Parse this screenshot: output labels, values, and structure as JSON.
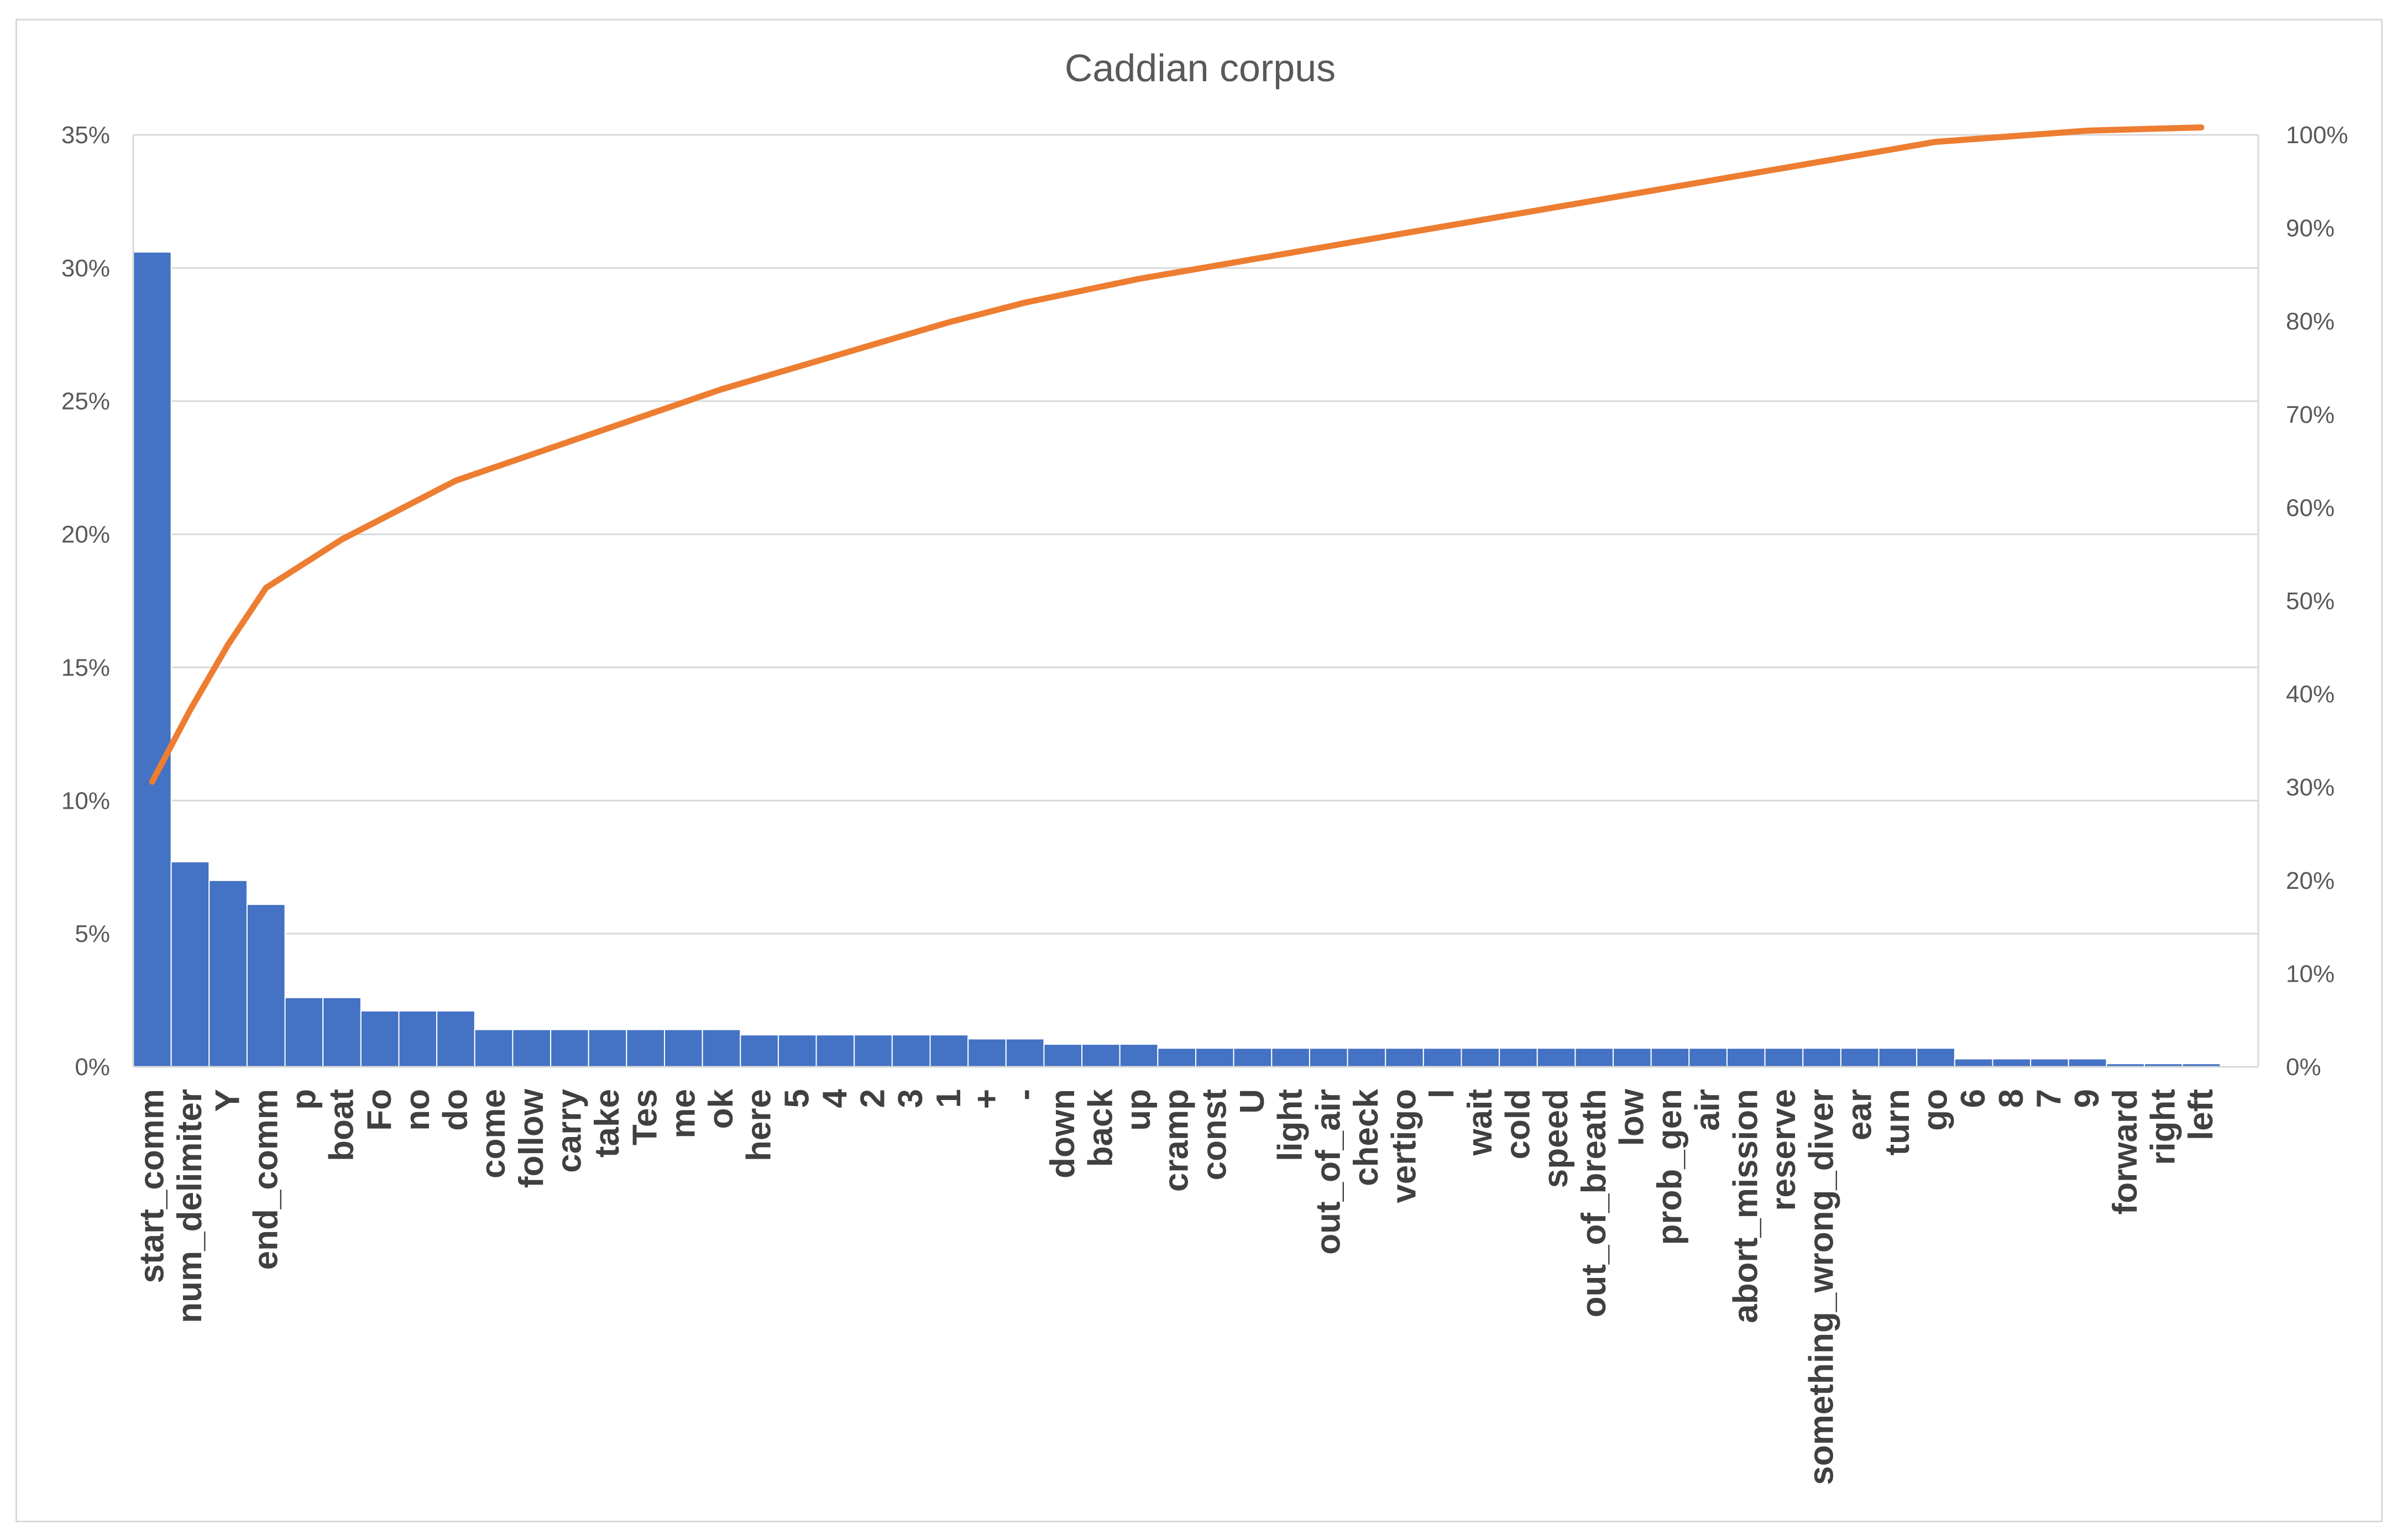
{
  "chart_data": {
    "type": "bar",
    "title": "Caddian corpus",
    "xlabel": "",
    "ylabel": "",
    "ylim": [
      0,
      35
    ],
    "y2lim": [
      0,
      100
    ],
    "yticks": [
      "0%",
      "5%",
      "10%",
      "15%",
      "20%",
      "25%",
      "30%",
      "35%"
    ],
    "y2ticks": [
      "0%",
      "10%",
      "20%",
      "30%",
      "40%",
      "50%",
      "60%",
      "70%",
      "80%",
      "90%",
      "100%"
    ],
    "grid": true,
    "legend": "none",
    "colors": {
      "bar": "#4472c4",
      "line": "#ed7d31",
      "grid": "#d9d9d9",
      "text": "#595959"
    },
    "categories": [
      "start_comm",
      "num_delimiter",
      "Y",
      "end_comm",
      "p",
      "boat",
      "Fo",
      "no",
      "do",
      "come",
      "follow",
      "carry",
      "take",
      "Tes",
      "me",
      "ok",
      "here",
      "5",
      "4",
      "2",
      "3",
      "1",
      "+",
      "-",
      "down",
      "back",
      "up",
      "cramp",
      "const",
      "U",
      "light",
      "out_of_air",
      "check",
      "vertigo",
      "l",
      "wait",
      "cold",
      "speed",
      "out_of_breath",
      "low",
      "prob_gen",
      "air",
      "abort_mission",
      "reserve",
      "something_wrong_diver",
      "ear",
      "turn",
      "go",
      "6",
      "8",
      "7",
      "9",
      "forward",
      "right",
      "left"
    ],
    "series": [
      {
        "type": "bar",
        "axis": "left",
        "values": [
          30.6,
          7.7,
          7.0,
          6.1,
          2.6,
          2.6,
          2.1,
          2.1,
          2.1,
          1.4,
          1.4,
          1.4,
          1.4,
          1.4,
          1.4,
          1.4,
          1.2,
          1.2,
          1.2,
          1.2,
          1.2,
          1.2,
          1.05,
          1.05,
          0.85,
          0.85,
          0.85,
          0.7,
          0.7,
          0.7,
          0.7,
          0.7,
          0.7,
          0.7,
          0.7,
          0.7,
          0.7,
          0.7,
          0.7,
          0.7,
          0.7,
          0.7,
          0.7,
          0.7,
          0.7,
          0.7,
          0.7,
          0.7,
          0.3,
          0.3,
          0.3,
          0.3,
          0.12,
          0.12,
          0.12
        ]
      },
      {
        "type": "line",
        "axis": "right",
        "values": [
          30.6,
          38.3,
          45.3,
          51.4,
          54.0,
          56.6,
          58.7,
          60.8,
          62.9,
          64.3,
          65.7,
          67.1,
          68.5,
          69.9,
          71.3,
          72.7,
          73.9,
          75.1,
          76.3,
          77.5,
          78.7,
          79.9,
          80.95,
          82.0,
          82.85,
          83.7,
          84.55,
          85.25,
          85.95,
          86.65,
          87.35,
          88.05,
          88.75,
          89.45,
          90.15,
          90.85,
          91.55,
          92.25,
          92.95,
          93.65,
          94.35,
          95.05,
          95.75,
          96.45,
          97.15,
          97.85,
          98.55,
          99.25,
          99.55,
          99.85,
          100.15,
          100.45,
          100.57,
          100.69,
          100.81
        ]
      }
    ]
  }
}
